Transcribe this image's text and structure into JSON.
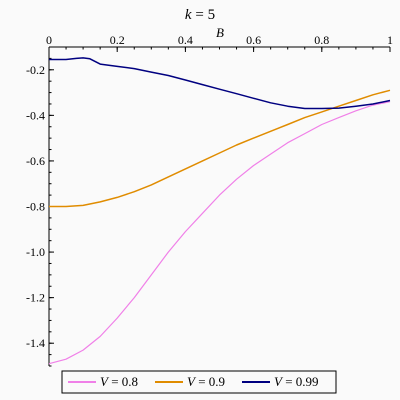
{
  "chart_data": {
    "type": "line",
    "title_var": "k",
    "title_value": "5",
    "xlabel": "B",
    "ylabel": "",
    "xlim": [
      0,
      1
    ],
    "ylim": [
      -1.5,
      -0.1
    ],
    "x_ticks": [
      0,
      0.2,
      0.4,
      0.6,
      0.8,
      1
    ],
    "x_tick_labels": [
      "0",
      "0.2",
      "0.4",
      "0.6",
      "0.8",
      "1"
    ],
    "y_ticks": [
      -0.2,
      -0.4,
      -0.6,
      -0.8,
      -1.0,
      -1.2,
      -1.4
    ],
    "y_tick_labels": [
      "-0.2",
      "-0.4",
      "-0.6",
      "-0.8",
      "-1.0",
      "-1.2",
      "-1.4"
    ],
    "legend_position": "bottom",
    "series": [
      {
        "name": "V = 0.8",
        "legend_var": "V",
        "legend_value": "0.8",
        "color": "#f080e8",
        "x": [
          0,
          0.05,
          0.1,
          0.15,
          0.2,
          0.25,
          0.3,
          0.35,
          0.4,
          0.45,
          0.5,
          0.55,
          0.6,
          0.65,
          0.7,
          0.75,
          0.8,
          0.85,
          0.9,
          0.95,
          1
        ],
        "y": [
          -1.49,
          -1.47,
          -1.43,
          -1.37,
          -1.29,
          -1.2,
          -1.1,
          -1.0,
          -0.91,
          -0.83,
          -0.75,
          -0.68,
          -0.62,
          -0.57,
          -0.52,
          -0.48,
          -0.44,
          -0.41,
          -0.38,
          -0.355,
          -0.34
        ]
      },
      {
        "name": "V = 0.9",
        "legend_var": "V",
        "legend_value": "0.9",
        "color": "#e08c00",
        "x": [
          0,
          0.05,
          0.1,
          0.15,
          0.2,
          0.25,
          0.3,
          0.35,
          0.4,
          0.45,
          0.5,
          0.55,
          0.6,
          0.65,
          0.7,
          0.75,
          0.8,
          0.85,
          0.9,
          0.95,
          1
        ],
        "y": [
          -0.8,
          -0.8,
          -0.795,
          -0.78,
          -0.76,
          -0.735,
          -0.705,
          -0.67,
          -0.635,
          -0.6,
          -0.565,
          -0.53,
          -0.5,
          -0.47,
          -0.44,
          -0.41,
          -0.385,
          -0.36,
          -0.335,
          -0.31,
          -0.29
        ]
      },
      {
        "name": "V = 0.99",
        "legend_var": "V",
        "legend_value": "0.99",
        "color": "#000080",
        "x": [
          0,
          0.05,
          0.08,
          0.1,
          0.12,
          0.15,
          0.2,
          0.25,
          0.3,
          0.35,
          0.4,
          0.45,
          0.5,
          0.55,
          0.6,
          0.65,
          0.7,
          0.75,
          0.8,
          0.85,
          0.9,
          0.95,
          1
        ],
        "y": [
          -0.155,
          -0.155,
          -0.15,
          -0.148,
          -0.152,
          -0.175,
          -0.185,
          -0.195,
          -0.21,
          -0.225,
          -0.245,
          -0.265,
          -0.285,
          -0.305,
          -0.325,
          -0.345,
          -0.36,
          -0.37,
          -0.37,
          -0.368,
          -0.36,
          -0.35,
          -0.335
        ]
      }
    ]
  }
}
